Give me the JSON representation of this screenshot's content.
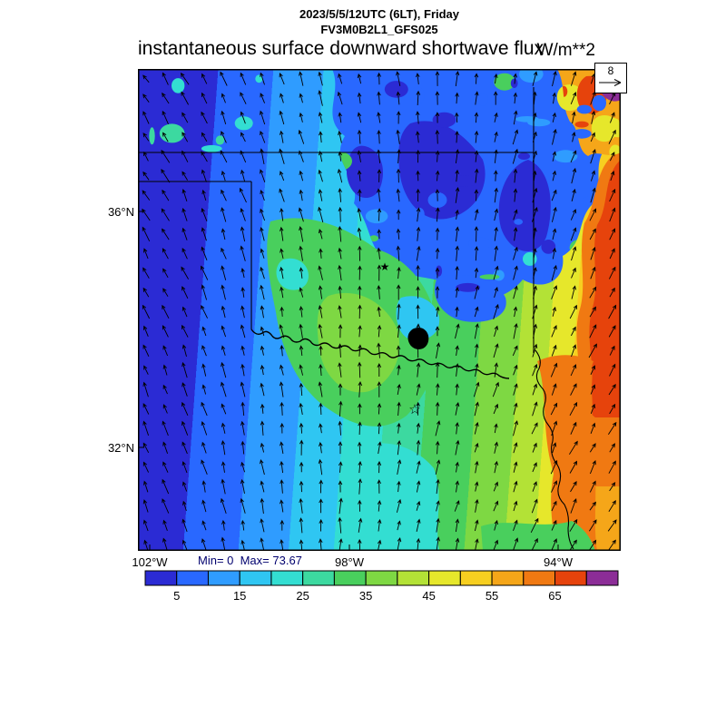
{
  "header": {
    "datetime": "2023/5/5/12UTC (6LT), Friday",
    "model": "FV3M0B2L1_GFS025"
  },
  "title": {
    "text": "instantaneous surface downward shortwave flux",
    "units": "W/m**2"
  },
  "axes": {
    "lat": [
      {
        "text": "36°N"
      },
      {
        "text": "32°N"
      }
    ],
    "lon": [
      {
        "text": "102°W"
      },
      {
        "text": "98°W"
      },
      {
        "text": "94°W"
      }
    ]
  },
  "stats": {
    "text": "Min= 0  Max= 73.67",
    "min": 0,
    "max": 73.67
  },
  "reference_vector": {
    "value": "8"
  },
  "colorbar": {
    "min": 0,
    "max": 75,
    "interval": 5,
    "tick_labels": [
      "5",
      "15",
      "25",
      "35",
      "45",
      "55",
      "65"
    ],
    "colors": [
      "#2b2bd4",
      "#2968ff",
      "#2f9cff",
      "#2fc6f2",
      "#33ded2",
      "#3cd9a0",
      "#49cf5d",
      "#7ed843",
      "#b3e236",
      "#e6e72b",
      "#f7cf20",
      "#f5a619",
      "#f07912",
      "#e6430c",
      "#8c2d97"
    ]
  },
  "chart_data": {
    "type": "heatmap",
    "title": "instantaneous surface downward shortwave flux",
    "units": "W/m**2",
    "valid_time": "2023/5/5/12UTC (6LT), Friday",
    "model": "FV3M0B2L1_GFS025",
    "field_min": 0,
    "field_max": 73.67,
    "contour_interval": 5,
    "colorbar_ticks": [
      5,
      15,
      25,
      35,
      45,
      55,
      65
    ],
    "colorbar_range": [
      0,
      75
    ],
    "colorbar_colors": [
      "#2b2bd4",
      "#2968ff",
      "#2f9cff",
      "#2fc6f2",
      "#33ded2",
      "#3cd9a0",
      "#49cf5d",
      "#7ed843",
      "#b3e236",
      "#e6e72b",
      "#f7cf20",
      "#f5a619",
      "#f07912",
      "#e6430c",
      "#8c2d97"
    ],
    "lat_ticks": [
      "36°N",
      "32°N"
    ],
    "lon_ticks": [
      "102°W",
      "98°W",
      "94°W"
    ],
    "wind_reference_value": 8,
    "overlays": [
      "wind vectors",
      "state borders",
      "red river",
      "city star markers"
    ],
    "pattern_notes": "low flux (blue) bands over west at dawn, cloud-shadow blue blob over north-central Oklahoma, high flux (orange/red, purple max) in northeast corner and along east edge, yellow/orange over east Texas"
  }
}
